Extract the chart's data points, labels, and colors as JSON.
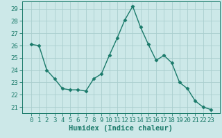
{
  "x": [
    0,
    1,
    2,
    3,
    4,
    5,
    6,
    7,
    8,
    9,
    10,
    11,
    12,
    13,
    14,
    15,
    16,
    17,
    18,
    19,
    20,
    21,
    22,
    23
  ],
  "y": [
    26.1,
    26.0,
    24.0,
    23.3,
    22.5,
    22.4,
    22.4,
    22.3,
    23.3,
    23.7,
    25.2,
    26.6,
    28.1,
    29.2,
    27.5,
    26.1,
    24.8,
    25.2,
    24.6,
    23.0,
    22.5,
    21.5,
    21.0,
    20.8
  ],
  "line_color": "#1a7a6a",
  "marker": "D",
  "marker_size": 2.5,
  "bg_color": "#cce8e8",
  "grid_color": "#aacece",
  "xlabel": "Humidex (Indice chaleur)",
  "ylim": [
    20.5,
    29.6
  ],
  "yticks": [
    21,
    22,
    23,
    24,
    25,
    26,
    27,
    28,
    29
  ],
  "xticks": [
    0,
    1,
    2,
    3,
    4,
    5,
    6,
    7,
    8,
    9,
    10,
    11,
    12,
    13,
    14,
    15,
    16,
    17,
    18,
    19,
    20,
    21,
    22,
    23
  ],
  "xlabel_color": "#1a7a6a",
  "tick_color": "#1a7a6a",
  "line_width": 1.0,
  "font_size_label": 7.5,
  "font_size_tick": 6.5
}
